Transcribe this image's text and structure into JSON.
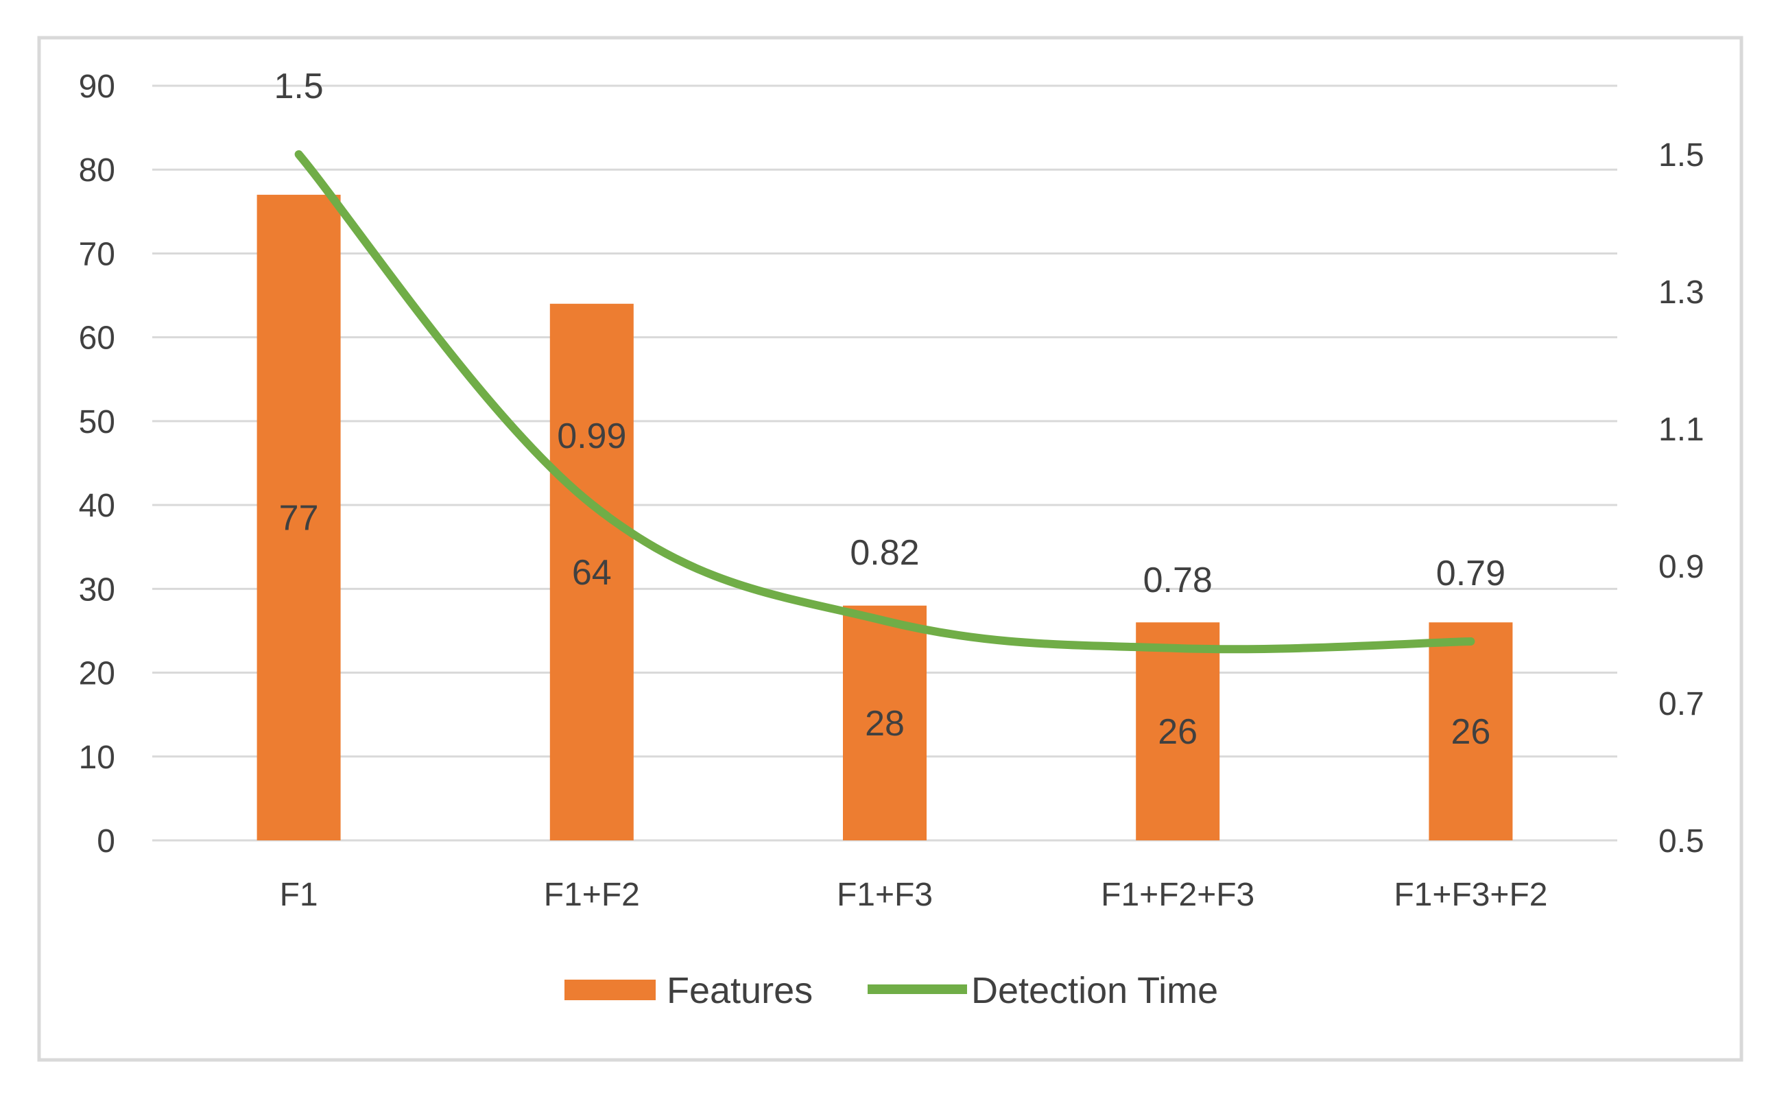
{
  "chart_data": {
    "type": "bar",
    "categories": [
      "F1",
      "F1+F2",
      "F1+F3",
      "F1+F2+F3",
      "F1+F3+F2"
    ],
    "series": [
      {
        "name": "Features",
        "type": "bar",
        "axis": "left",
        "values": [
          77,
          64,
          28,
          26,
          26
        ],
        "data_labels": [
          "77",
          "64",
          "28",
          "26",
          "26"
        ],
        "color": "#ED7D31"
      },
      {
        "name": "Detection Time",
        "type": "line",
        "axis": "right",
        "values": [
          1.5,
          0.99,
          0.82,
          0.78,
          0.79
        ],
        "data_labels": [
          "1.5",
          "0.99",
          "0.82",
          "0.78",
          "0.79"
        ],
        "color": "#70AD47"
      }
    ],
    "y_left": {
      "min": 0,
      "max": 90,
      "ticks": [
        "0",
        "10",
        "20",
        "30",
        "40",
        "50",
        "60",
        "70",
        "80",
        "90"
      ]
    },
    "y_right": {
      "min": 0.5,
      "max": 1.6,
      "ticks": [
        "0.5",
        "0.7",
        "0.9",
        "1.1",
        "1.3",
        "1.5"
      ],
      "tick_values": [
        0.5,
        0.7,
        0.9,
        1.1,
        1.3,
        1.5
      ]
    },
    "title": "",
    "xlabel": "",
    "ylabel": "",
    "grid": true,
    "legend": "bottom"
  },
  "colors": {
    "grid": "#D9D9D9",
    "frame": "#D9D9D9",
    "text": "#404040"
  }
}
